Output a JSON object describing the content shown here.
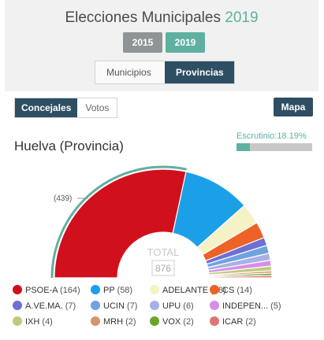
{
  "header": {
    "title": "Elecciones Municipales",
    "title_year": "2019",
    "year_buttons": [
      "2015",
      "2019"
    ],
    "active_year": "2019",
    "region_tabs": [
      "Municipios",
      "Provincias"
    ],
    "active_region_tab": "Provincias"
  },
  "view": {
    "tabs": [
      "Concejales",
      "Votos"
    ],
    "active_tab": "Concejales",
    "map_button": "Mapa"
  },
  "region_title": "Huelva (Provincia)",
  "escrutinio": {
    "label": "Escrutinio:18.19%",
    "fraction": 0.1819
  },
  "colors": {
    "accent": "#5fb0a0",
    "dark_button": "#2e4e63",
    "grey_button": "#8f9597"
  },
  "chart_data": {
    "type": "pie",
    "subtype": "parliament-semicircle",
    "total_label": "TOTAL",
    "total": "876",
    "majority_label": "(439)",
    "series": [
      {
        "name": "PSOE-A",
        "count_label": "(164)",
        "value": 164,
        "color": "#d0101c"
      },
      {
        "name": "PP",
        "count_label": "(58)",
        "value": 58,
        "color": "#1ba0e8"
      },
      {
        "name": "ADELANTE",
        "count_label": "(18)",
        "value": 18,
        "color": "#f5f2c6"
      },
      {
        "name": "CS",
        "count_label": "(14)",
        "value": 14,
        "color": "#ee6226"
      },
      {
        "name": "A.VE.MA.",
        "count_label": "(7)",
        "value": 7,
        "color": "#6b6fd6"
      },
      {
        "name": "UCIN",
        "count_label": "(7)",
        "value": 7,
        "color": "#6fa2e0"
      },
      {
        "name": "UPU",
        "count_label": "(6)",
        "value": 6,
        "color": "#a9afe8"
      },
      {
        "name": "INDEPEN...",
        "count_label": "(5)",
        "value": 5,
        "color": "#d58fe8"
      },
      {
        "name": "IXH",
        "count_label": "(4)",
        "value": 4,
        "color": "#c1c97e"
      },
      {
        "name": "MRH",
        "count_label": "(2)",
        "value": 2,
        "color": "#d8956b"
      },
      {
        "name": "VOX",
        "count_label": "(2)",
        "value": 2,
        "color": "#6aa629"
      },
      {
        "name": "ICAR",
        "count_label": "(2)",
        "value": 2,
        "color": "#e07572"
      }
    ]
  }
}
